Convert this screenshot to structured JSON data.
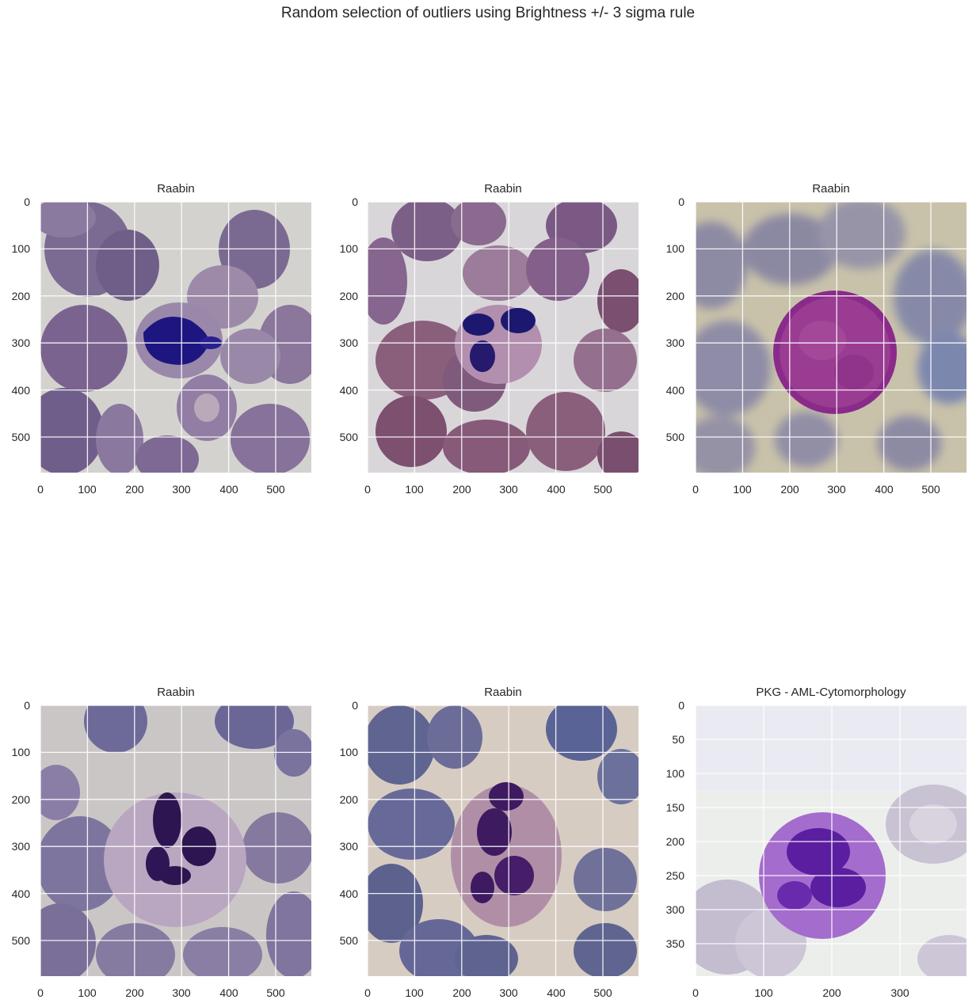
{
  "figure": {
    "suptitle": "Random selection of outliers using Brightness +/- 3 sigma rule"
  },
  "panels": [
    {
      "title": "Raabin",
      "image_desc": "blood-smear",
      "nucleus_color": "#1d1580",
      "bg_color": "#d3d2cf",
      "xticks": [
        "0",
        "100",
        "200",
        "300",
        "400",
        "500"
      ],
      "yticks": [
        "0",
        "100",
        "200",
        "300",
        "400",
        "500"
      ]
    },
    {
      "title": "Raabin",
      "image_desc": "blood-smear",
      "nucleus_color": "#1c1870",
      "bg_color": "#d9d6da",
      "xticks": [
        "0",
        "100",
        "200",
        "300",
        "400",
        "500"
      ],
      "yticks": [
        "0",
        "100",
        "200",
        "300",
        "400",
        "500"
      ]
    },
    {
      "title": "Raabin",
      "image_desc": "blood-smear",
      "nucleus_color": "#8a2a8a",
      "bg_color": "#c9c2aa",
      "xticks": [
        "0",
        "100",
        "200",
        "300",
        "400",
        "500"
      ],
      "yticks": [
        "0",
        "100",
        "200",
        "300",
        "400",
        "500"
      ]
    },
    {
      "title": "Raabin",
      "image_desc": "blood-smear",
      "nucleus_color": "#2c1550",
      "bg_color": "#cbc6c6",
      "xticks": [
        "0",
        "100",
        "200",
        "300",
        "400",
        "500"
      ],
      "yticks": [
        "0",
        "100",
        "200",
        "300",
        "400",
        "500"
      ]
    },
    {
      "title": "Raabin",
      "image_desc": "blood-smear",
      "nucleus_color": "#3e1a60",
      "bg_color": "#d7ccc2",
      "xticks": [
        "0",
        "100",
        "200",
        "300",
        "400",
        "500"
      ],
      "yticks": [
        "0",
        "100",
        "200",
        "300",
        "400",
        "500"
      ]
    },
    {
      "title": "PKG - AML-Cytomorphology",
      "image_desc": "blood-smear",
      "nucleus_color": "#5b1ea0",
      "bg_color": "#eceeec",
      "xticks": [
        "0",
        "100",
        "200",
        "300"
      ],
      "yticks": [
        "0",
        "50",
        "100",
        "150",
        "200",
        "250",
        "300",
        "350"
      ]
    }
  ]
}
